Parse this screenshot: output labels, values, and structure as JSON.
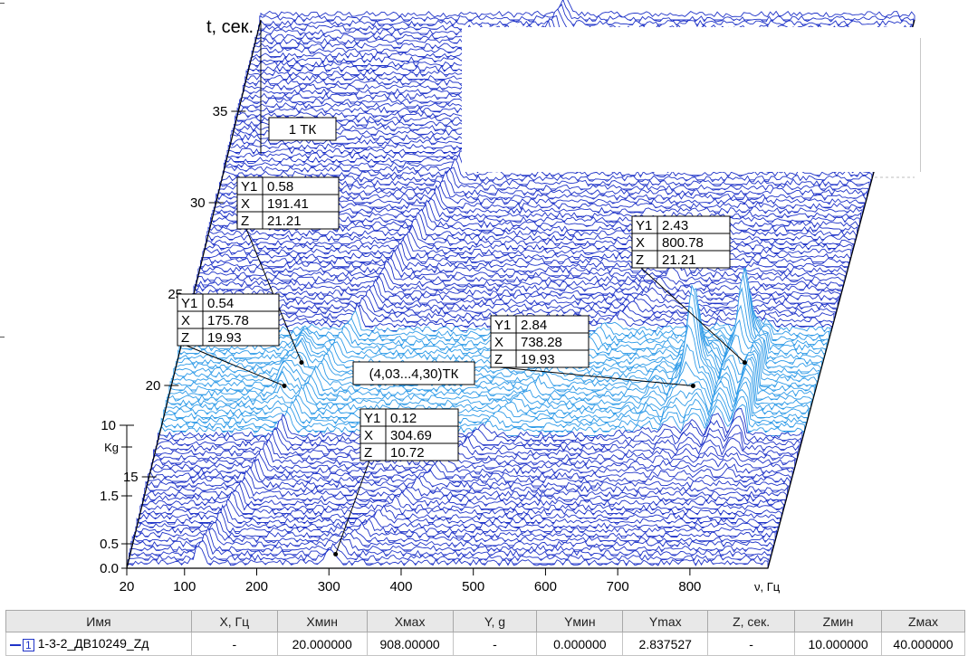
{
  "chart_data": {
    "type": "waterfall-3d",
    "y_axis_label": "t, сек.",
    "x_axis_label": "ν, Гц",
    "lower_axis_label": "Kg",
    "t_ticks": [
      "35",
      "30",
      "25",
      "20",
      "15",
      "10"
    ],
    "t_values": [
      35,
      30,
      25,
      20,
      15,
      10
    ],
    "t_range": [
      10,
      40
    ],
    "amp_ticks": [
      "1.5",
      "0.5",
      "0.0"
    ],
    "amp_values": [
      1.5,
      0.5,
      0.0
    ],
    "x_ticks": [
      "20",
      "100",
      "200",
      "300",
      "400",
      "500",
      "600",
      "700",
      "800"
    ],
    "x_values": [
      20,
      100,
      200,
      300,
      400,
      500,
      600,
      700,
      800
    ],
    "x_range": [
      20,
      908
    ],
    "y_range": [
      0,
      2.837527
    ],
    "grid": true,
    "peaks": [
      {
        "x": 175.78,
        "z": 19.93,
        "y": 0.54
      },
      {
        "x": 191.41,
        "z": 21.21,
        "y": 0.58
      },
      {
        "x": 304.69,
        "z": 10.72,
        "y": 0.12
      },
      {
        "x": 738.28,
        "z": 19.93,
        "y": 2.84
      },
      {
        "x": 800.78,
        "z": 21.21,
        "y": 2.43
      }
    ],
    "markers": [
      {
        "rows": [
          [
            "Y1",
            "0.58"
          ],
          [
            "X",
            "191.41"
          ],
          [
            "Z",
            "21.21"
          ]
        ]
      },
      {
        "rows": [
          [
            "Y1",
            "0.54"
          ],
          [
            "X",
            "175.78"
          ],
          [
            "Z",
            "19.93"
          ]
        ]
      },
      {
        "rows": [
          [
            "Y1",
            "0.12"
          ],
          [
            "X",
            "304.69"
          ],
          [
            "Z",
            "10.72"
          ]
        ]
      },
      {
        "rows": [
          [
            "Y1",
            "2.84"
          ],
          [
            "X",
            "738.28"
          ],
          [
            "Z",
            "19.93"
          ]
        ]
      },
      {
        "rows": [
          [
            "Y1",
            "2.43"
          ],
          [
            "X",
            "800.78"
          ],
          [
            "Z",
            "21.21"
          ]
        ]
      }
    ],
    "annotations": [
      "1 ТК",
      "(4,03...4,30)ТК"
    ],
    "colors": {
      "line": "#1f33c8",
      "highlight": "#2f9be8",
      "axis": "#000000",
      "grid": "#bdbdbd"
    }
  },
  "legend_table": {
    "headers": [
      "Имя",
      "X, Гц",
      "Xмин",
      "Xмах",
      "Y, g",
      "Yмин",
      "Ymax",
      "Z, сек.",
      "Zмин",
      "Zмax"
    ],
    "rows": [
      {
        "index": "1",
        "name": "1-3-2_ДВ10249_Zд",
        "x": "-",
        "xmin": "20.000000",
        "xmax": "908.00000",
        "y": "-",
        "ymin": "0.000000",
        "ymax": "2.837527",
        "z": "-",
        "zmin": "10.000000",
        "zmax": "40.000000"
      }
    ]
  }
}
